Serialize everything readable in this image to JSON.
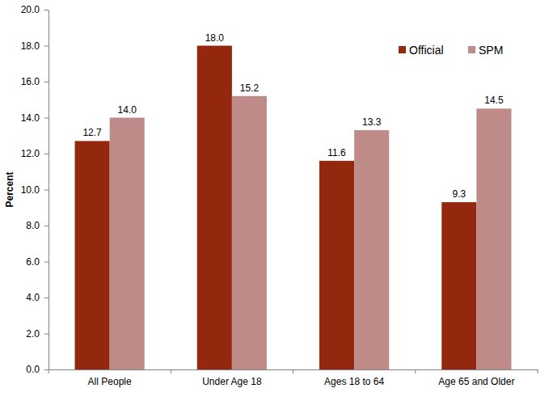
{
  "chart_data": {
    "type": "bar",
    "y_label": "Percent",
    "categories": [
      "All People",
      "Under Age 18",
      "Ages 18 to 64",
      "Age 65 and Older"
    ],
    "series": [
      {
        "name": "Official",
        "color": "#93280e",
        "values": [
          12.7,
          18.0,
          11.6,
          9.3
        ],
        "value_labels": [
          "12.7",
          "18.0",
          "11.6",
          "9.3"
        ]
      },
      {
        "name": "SPM",
        "color": "#bf8b88",
        "values": [
          14.0,
          15.2,
          13.3,
          14.5
        ],
        "value_labels": [
          "14.0",
          "15.2",
          "13.3",
          "14.5"
        ]
      }
    ],
    "ylim": [
      0,
      20
    ],
    "yticks": [
      {
        "value": 0,
        "label": "0.0"
      },
      {
        "value": 2,
        "label": "2.0"
      },
      {
        "value": 4,
        "label": "4.0"
      },
      {
        "value": 6,
        "label": "6.0"
      },
      {
        "value": 8,
        "label": "8.0"
      },
      {
        "value": 10,
        "label": "10.0"
      },
      {
        "value": 12,
        "label": "12.0"
      },
      {
        "value": 14,
        "label": "14.0"
      },
      {
        "value": 16,
        "label": "16.0"
      },
      {
        "value": 18,
        "label": "18.0"
      },
      {
        "value": 20,
        "label": "20.0"
      }
    ],
    "grid": false,
    "legend": "upper right",
    "data_labels": true
  }
}
